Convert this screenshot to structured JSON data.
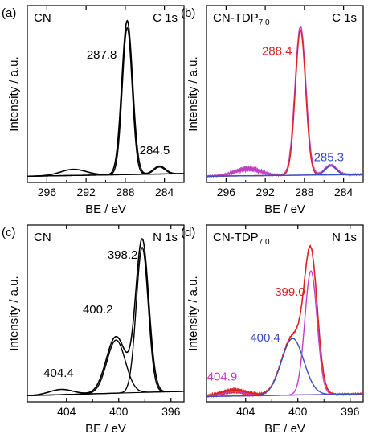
{
  "chart_data": [
    {
      "type": "line",
      "panel_label": "(a)",
      "sample": "CN",
      "sample_sub": "",
      "core_level": "C 1s",
      "xlabel": "BE / eV",
      "ylabel": "Intensity / a.u.",
      "x_reversed": true,
      "xlim": [
        298,
        282
      ],
      "ylim": [
        0,
        1.0
      ],
      "xticks": [
        "296",
        "292",
        "288",
        "284"
      ],
      "xtick_values": [
        296,
        292,
        288,
        284
      ],
      "background": {
        "x0": 298,
        "x1": 282,
        "y0": 0.035,
        "y1": 0.05
      },
      "series": [
        {
          "color": "#000000",
          "kind": "sum",
          "peaks": [
            [
              293.3,
              0.035,
              1.3
            ],
            [
              287.8,
              0.87,
              0.55
            ],
            [
              284.5,
              0.045,
              0.6
            ]
          ]
        },
        {
          "color": "#000000",
          "kind": "component",
          "peaks": [
            [
              287.8,
              0.83,
              0.5
            ]
          ]
        },
        {
          "color": "#000000",
          "kind": "component",
          "peaks": [
            [
              284.5,
              0.04,
              0.55
            ]
          ]
        }
      ],
      "annotations": [
        {
          "text": "287.8",
          "x": 290.4,
          "y": 0.7,
          "color": "#000000"
        },
        {
          "text": "284.5",
          "x": 285.0,
          "y": 0.16,
          "color": "#000000"
        }
      ]
    },
    {
      "type": "line",
      "panel_label": "(b)",
      "sample": "CN-TDP",
      "sample_sub": "7.0",
      "core_level": "C 1s",
      "xlabel": "BE / eV",
      "ylabel": "Intensity / a.u.",
      "x_reversed": true,
      "xlim": [
        298,
        282
      ],
      "ylim": [
        0,
        1.0
      ],
      "xticks": [
        "296",
        "292",
        "288",
        "284"
      ],
      "xtick_values": [
        296,
        292,
        288,
        284
      ],
      "background": {
        "x0": 298,
        "x1": 282,
        "y0": 0.035,
        "y1": 0.045
      },
      "series": [
        {
          "color": "#c040c0",
          "kind": "raw",
          "peaks": [
            [
              293.8,
              0.04,
              1.3
            ],
            [
              288.4,
              0.84,
              0.55
            ],
            [
              285.3,
              0.055,
              0.6
            ]
          ]
        },
        {
          "color": "#e02020",
          "kind": "component",
          "peaks": [
            [
              288.4,
              0.82,
              0.52
            ]
          ]
        },
        {
          "color": "#3a4fc0",
          "kind": "component",
          "peaks": [
            [
              285.3,
              0.05,
              0.55
            ]
          ]
        }
      ],
      "annotations": [
        {
          "text": "288.4",
          "x": 290.8,
          "y": 0.72,
          "color": "#e02020"
        },
        {
          "text": "285.3",
          "x": 285.5,
          "y": 0.12,
          "color": "#3a4fc0"
        }
      ]
    },
    {
      "type": "line",
      "panel_label": "(c)",
      "sample": "CN",
      "sample_sub": "",
      "core_level": "N 1s",
      "xlabel": "BE / eV",
      "ylabel": "Intensity / a.u.",
      "x_reversed": true,
      "xlim": [
        407,
        395
      ],
      "ylim": [
        0,
        1.0
      ],
      "xticks": [
        "404",
        "400",
        "396"
      ],
      "xtick_values": [
        404,
        400,
        396
      ],
      "background": {
        "x0": 407,
        "x1": 395,
        "y0": 0.035,
        "y1": 0.06
      },
      "series": [
        {
          "color": "#000000",
          "kind": "sum",
          "peaks": [
            [
              404.4,
              0.03,
              0.9
            ],
            [
              400.2,
              0.32,
              0.75
            ],
            [
              398.2,
              0.86,
              0.5
            ]
          ]
        },
        {
          "color": "#000000",
          "kind": "component",
          "peaks": [
            [
              400.2,
              0.3,
              0.7
            ]
          ]
        },
        {
          "color": "#000000",
          "kind": "component",
          "peaks": [
            [
              398.2,
              0.82,
              0.46
            ]
          ]
        }
      ],
      "annotations": [
        {
          "text": "398.2",
          "x": 399.7,
          "y": 0.81,
          "color": "#000000"
        },
        {
          "text": "400.2",
          "x": 401.6,
          "y": 0.5,
          "color": "#000000"
        },
        {
          "text": "404.4",
          "x": 404.6,
          "y": 0.14,
          "color": "#000000"
        }
      ]
    },
    {
      "type": "line",
      "panel_label": "(d)",
      "sample": "CN-TDP",
      "sample_sub": "7.0",
      "core_level": "N 1s",
      "xlabel": "BE / eV",
      "ylabel": "Intensity / a.u.",
      "x_reversed": true,
      "xlim": [
        407,
        395
      ],
      "ylim": [
        0,
        1.0
      ],
      "xticks": [
        "404",
        "400",
        "396"
      ],
      "xtick_values": [
        404,
        400,
        396
      ],
      "background": {
        "x0": 407,
        "x1": 395,
        "y0": 0.03,
        "y1": 0.045
      },
      "series": [
        {
          "color": "#e02020",
          "kind": "raw",
          "peaks": [
            [
              404.9,
              0.03,
              1.0
            ],
            [
              400.4,
              0.33,
              0.85
            ],
            [
              399.0,
              0.75,
              0.5
            ]
          ]
        },
        {
          "color": "#3a4fc0",
          "kind": "component",
          "peaks": [
            [
              400.4,
              0.32,
              0.85
            ]
          ]
        },
        {
          "color": "#c040c0",
          "kind": "component",
          "peaks": [
            [
              399.0,
              0.7,
              0.47
            ]
          ]
        },
        {
          "color": "#c040c0",
          "kind": "component",
          "peaks": [
            [
              404.9,
              0.025,
              0.9
            ]
          ]
        }
      ],
      "annotations": [
        {
          "text": "399.0",
          "x": 400.6,
          "y": 0.6,
          "color": "#e02020"
        },
        {
          "text": "400.4",
          "x": 402.5,
          "y": 0.34,
          "color": "#3a4fc0"
        },
        {
          "text": "404.9",
          "x": 405.8,
          "y": 0.12,
          "color": "#c040c0"
        }
      ]
    }
  ]
}
